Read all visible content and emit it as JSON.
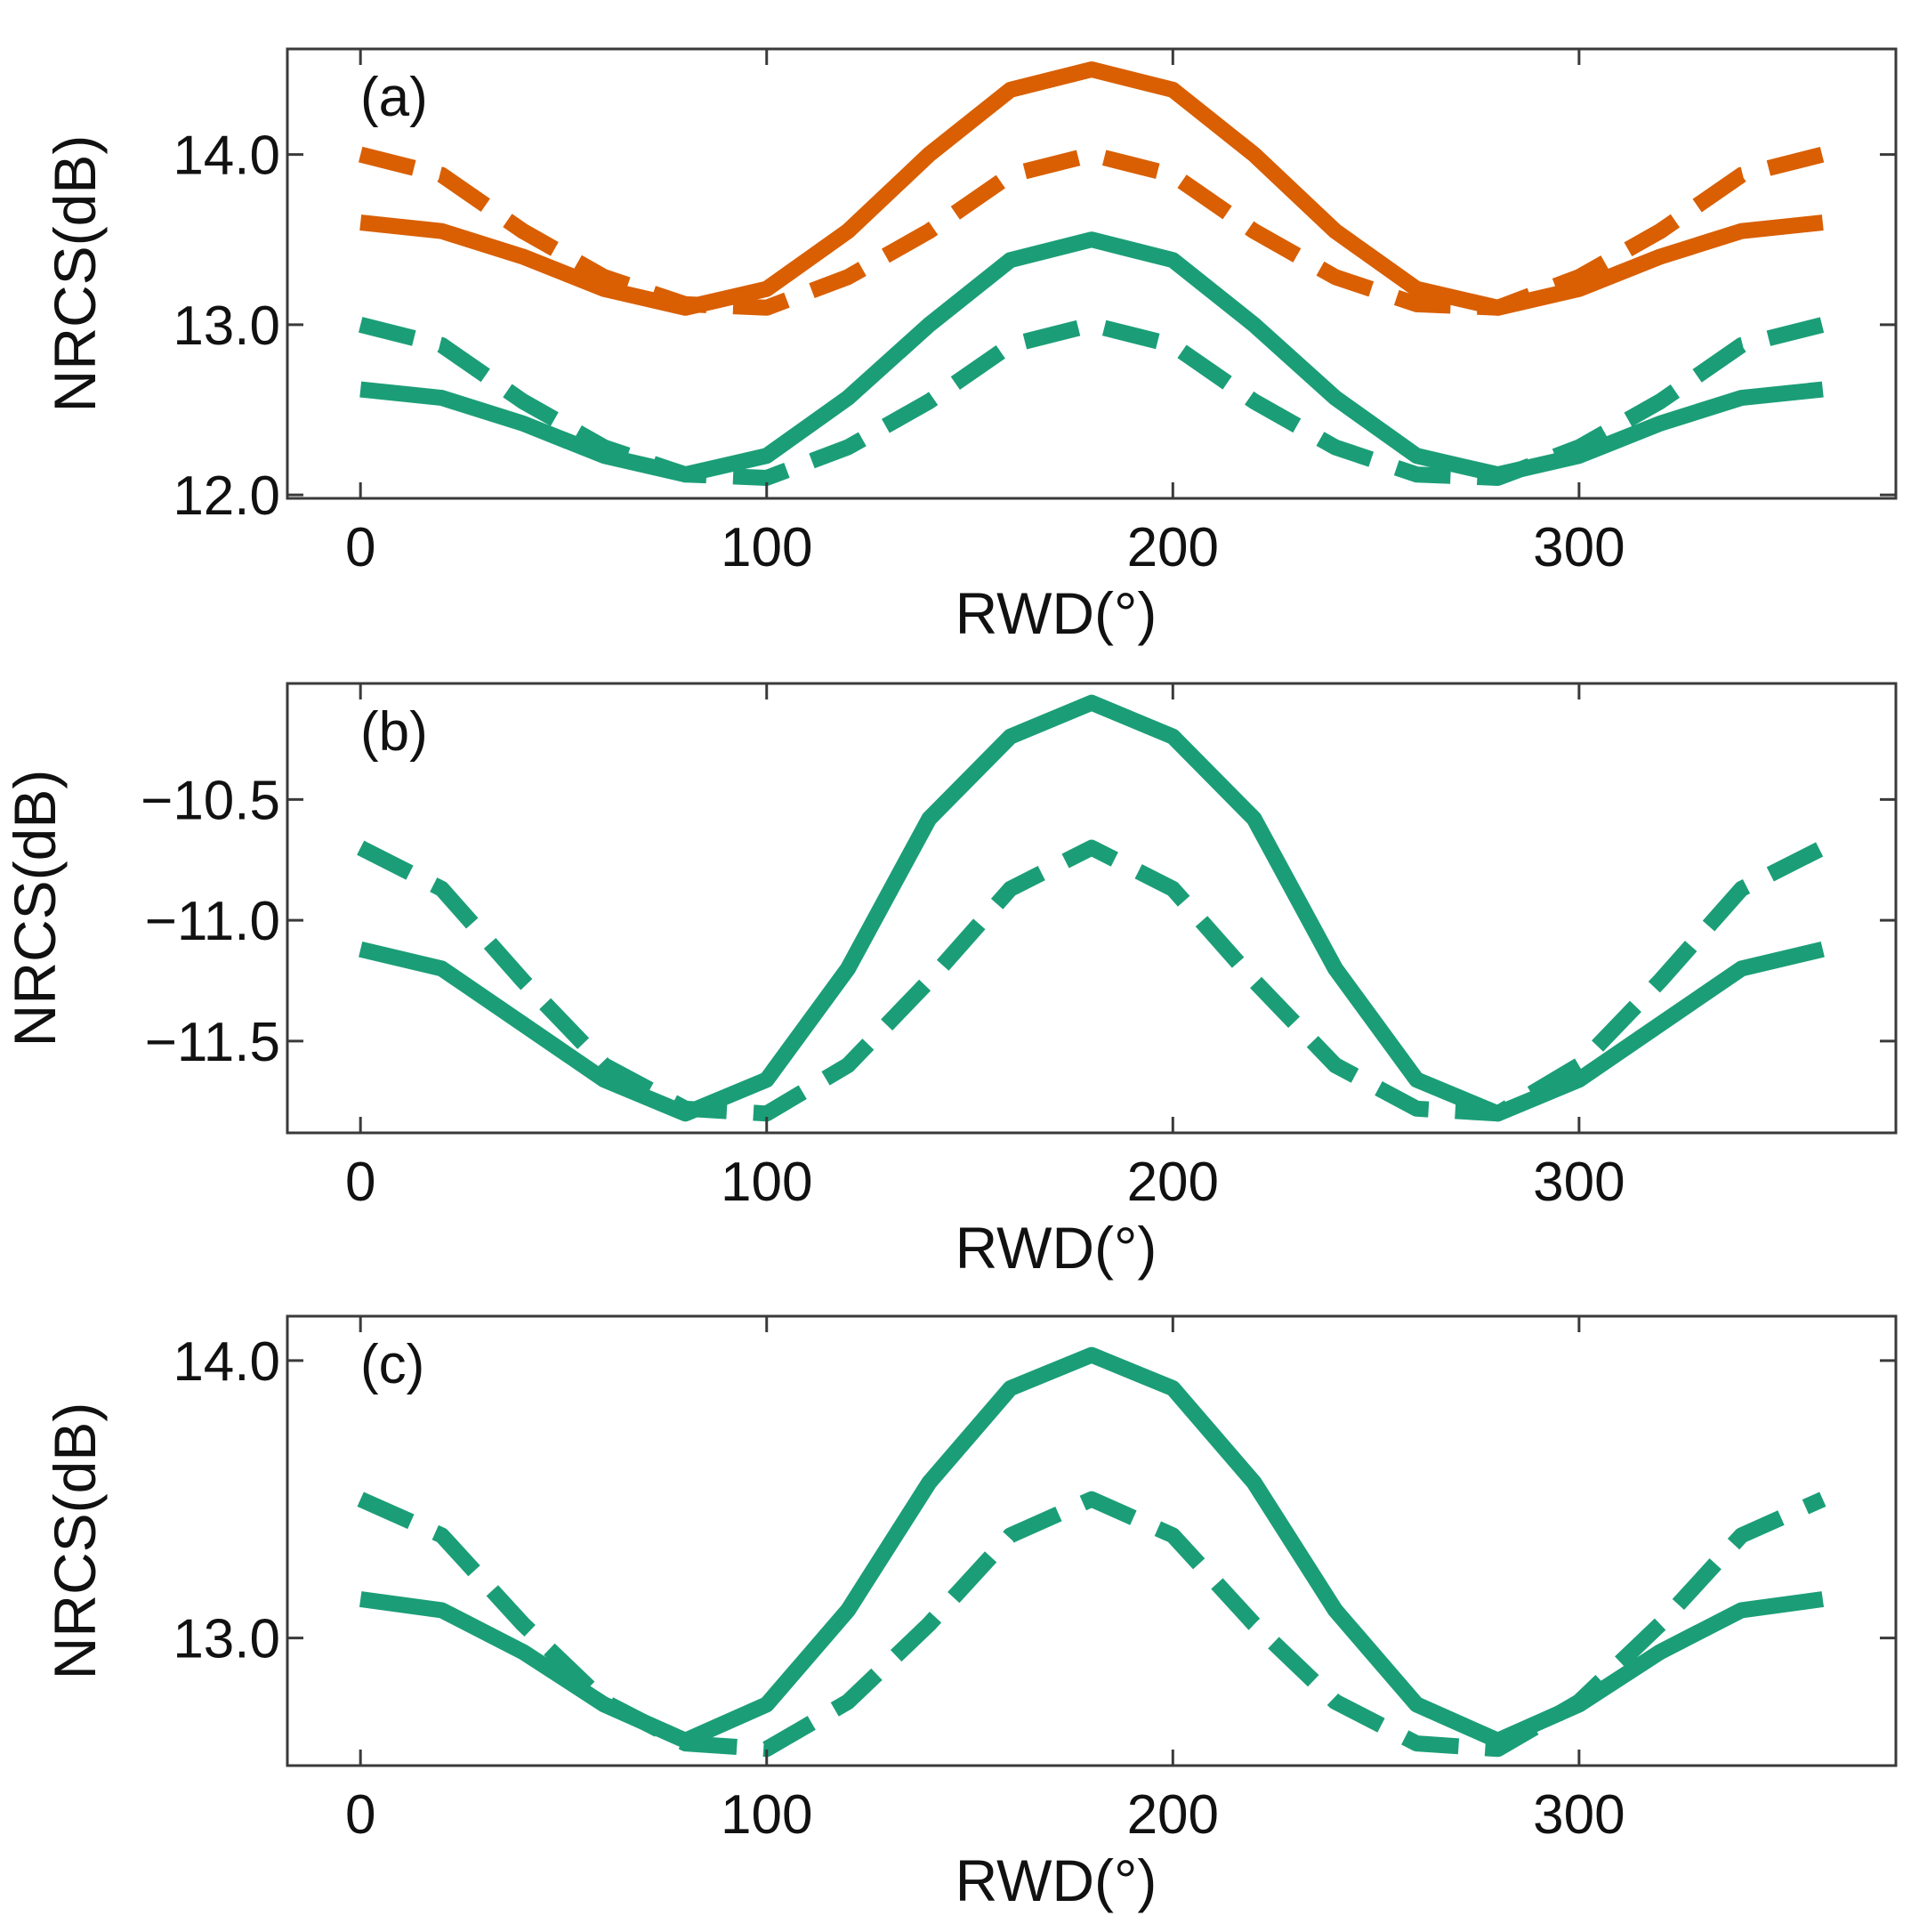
{
  "chart_data": [
    {
      "type": "line",
      "panel_label": "(a)",
      "xlabel": "RWD(°)",
      "ylabel": "NRCS(dB)",
      "xlim": [
        -18,
        378
      ],
      "ylim": [
        11.98,
        14.62
      ],
      "xticks": [
        0,
        100,
        200,
        300
      ],
      "xtick_labels": [
        "0",
        "100",
        "200",
        "300"
      ],
      "yticks": [
        12.0,
        13.0,
        14.0
      ],
      "ytick_labels": [
        "12.0",
        "13.0",
        "14.0"
      ],
      "x": [
        0,
        20,
        40,
        60,
        80,
        100,
        120,
        140,
        160,
        180,
        200,
        220,
        240,
        260,
        280,
        300,
        320,
        340,
        360
      ],
      "series": [
        {
          "name": "orange-solid",
          "color": "#d95f02",
          "style": "solid",
          "values": [
            13.6,
            13.55,
            13.4,
            13.21,
            13.1,
            13.21,
            13.55,
            14.0,
            14.38,
            14.5,
            14.38,
            14.0,
            13.55,
            13.21,
            13.1,
            13.21,
            13.4,
            13.55,
            13.6
          ]
        },
        {
          "name": "orange-dashed",
          "color": "#d95f02",
          "style": "dashed",
          "values": [
            14.0,
            13.88,
            13.55,
            13.28,
            13.12,
            13.1,
            13.28,
            13.55,
            13.88,
            14.0,
            13.88,
            13.55,
            13.28,
            13.12,
            13.1,
            13.28,
            13.55,
            13.88,
            14.0
          ]
        },
        {
          "name": "green-solid",
          "color": "#1b9e77",
          "style": "solid",
          "values": [
            12.62,
            12.57,
            12.42,
            12.23,
            12.12,
            12.23,
            12.57,
            13.0,
            13.38,
            13.5,
            13.38,
            13.0,
            12.57,
            12.23,
            12.12,
            12.23,
            12.42,
            12.57,
            12.62
          ]
        },
        {
          "name": "green-dashed",
          "color": "#1b9e77",
          "style": "dashed",
          "values": [
            13.0,
            12.88,
            12.55,
            12.28,
            12.12,
            12.1,
            12.28,
            12.55,
            12.88,
            13.0,
            12.88,
            12.55,
            12.28,
            12.12,
            12.1,
            12.28,
            12.55,
            12.88,
            13.0
          ]
        }
      ]
    },
    {
      "type": "line",
      "panel_label": "(b)",
      "xlabel": "RWD(°)",
      "ylabel": "NRCS(dB)",
      "xlim": [
        -18,
        378
      ],
      "ylim": [
        -11.88,
        -10.02
      ],
      "xticks": [
        0,
        100,
        200,
        300
      ],
      "xtick_labels": [
        "0",
        "100",
        "200",
        "300"
      ],
      "yticks": [
        -10.5,
        -11.0,
        -11.5
      ],
      "ytick_labels": [
        "−10.5",
        "−11.0",
        "−11.5"
      ],
      "x": [
        0,
        20,
        40,
        60,
        80,
        100,
        120,
        140,
        160,
        180,
        200,
        220,
        240,
        260,
        280,
        300,
        320,
        340,
        360
      ],
      "series": [
        {
          "name": "green-solid",
          "color": "#1b9e77",
          "style": "solid",
          "values": [
            -11.12,
            -11.2,
            -11.43,
            -11.66,
            -11.8,
            -11.66,
            -11.2,
            -10.58,
            -10.24,
            -10.1,
            -10.24,
            -10.58,
            -11.2,
            -11.66,
            -11.8,
            -11.66,
            -11.43,
            -11.2,
            -11.12
          ]
        },
        {
          "name": "green-dashed",
          "color": "#1b9e77",
          "style": "dashed",
          "values": [
            -10.7,
            -10.87,
            -11.25,
            -11.6,
            -11.78,
            -11.8,
            -11.6,
            -11.25,
            -10.87,
            -10.7,
            -10.87,
            -11.25,
            -11.6,
            -11.78,
            -11.8,
            -11.6,
            -11.25,
            -10.87,
            -10.7
          ]
        }
      ]
    },
    {
      "type": "line",
      "panel_label": "(c)",
      "xlabel": "RWD(°)",
      "ylabel": "NRCS(dB)",
      "xlim": [
        -18,
        378
      ],
      "ylim": [
        12.54,
        14.16
      ],
      "xticks": [
        0,
        100,
        200,
        300
      ],
      "xtick_labels": [
        "0",
        "100",
        "200",
        "300"
      ],
      "yticks": [
        13.0,
        14.0
      ],
      "ytick_labels": [
        "13.0",
        "14.0"
      ],
      "x": [
        0,
        20,
        40,
        60,
        80,
        100,
        120,
        140,
        160,
        180,
        200,
        220,
        240,
        260,
        280,
        300,
        320,
        340,
        360
      ],
      "series": [
        {
          "name": "green-solid",
          "color": "#1b9e77",
          "style": "solid",
          "values": [
            13.14,
            13.1,
            12.95,
            12.76,
            12.63,
            12.76,
            13.1,
            13.56,
            13.9,
            14.02,
            13.9,
            13.56,
            13.1,
            12.76,
            12.63,
            12.76,
            12.95,
            13.1,
            13.14
          ]
        },
        {
          "name": "green-dashed",
          "color": "#1b9e77",
          "style": "dashed",
          "values": [
            13.5,
            13.37,
            13.05,
            12.77,
            12.62,
            12.6,
            12.77,
            13.05,
            13.37,
            13.5,
            13.37,
            13.05,
            12.77,
            12.62,
            12.6,
            12.77,
            13.05,
            13.37,
            13.5
          ]
        }
      ]
    }
  ]
}
